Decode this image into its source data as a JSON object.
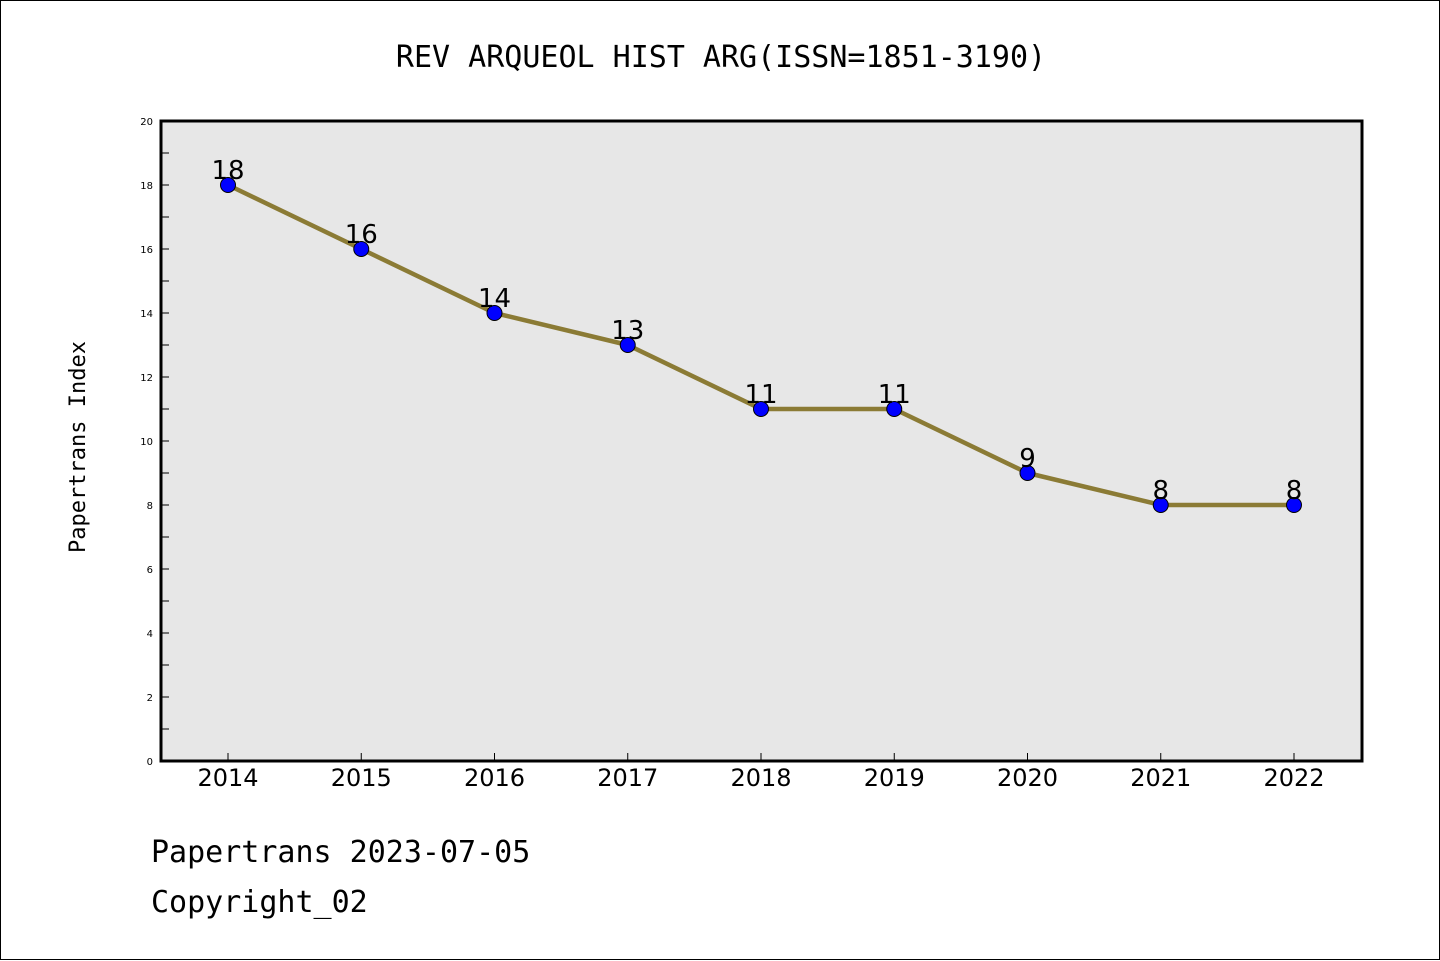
{
  "chart_data": {
    "type": "line",
    "title": "REV ARQUEOL HIST ARG(ISSN=1851-3190)",
    "xlabel": "",
    "ylabel": "Papertrans Index",
    "categories": [
      "2014",
      "2015",
      "2016",
      "2017",
      "2018",
      "2019",
      "2020",
      "2021",
      "2022"
    ],
    "series": [
      {
        "values": [
          18,
          16,
          14,
          13,
          11,
          11,
          9,
          8,
          8
        ]
      }
    ],
    "ylim": [
      0,
      20
    ],
    "yticks": [
      0,
      2,
      4,
      6,
      8,
      10,
      12,
      14,
      16,
      18,
      20
    ],
    "grid": false,
    "line_color": "#8b7b35",
    "marker_color": "#0000ff",
    "plot_background": "#e7e7e7"
  },
  "footer": {
    "line1": "Papertrans 2023-07-05",
    "line2": "Copyright_02"
  }
}
